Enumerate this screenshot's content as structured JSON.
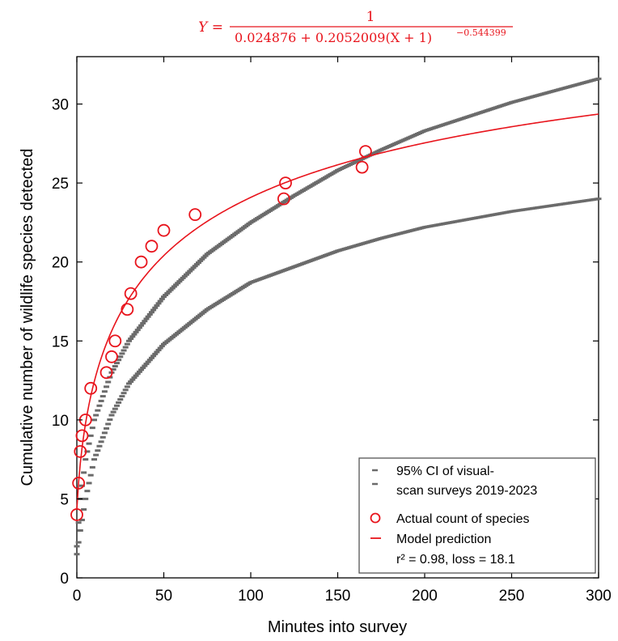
{
  "colors": {
    "model": "#e8141c",
    "ci": "#6b6b6b",
    "axis": "#000000"
  },
  "equation": {
    "lhs": "Y =",
    "numerator": "1",
    "denominator": "0.024876 + 0.2052009(X + 1)",
    "exponent": "−0.544399"
  },
  "chart_data": {
    "type": "scatter",
    "xlabel": "Minutes into survey",
    "ylabel": "Cumulative number of wildlife species detected",
    "xlim": [
      0,
      300
    ],
    "ylim": [
      0,
      33
    ],
    "xticks": [
      0,
      50,
      100,
      150,
      200,
      250,
      300
    ],
    "yticks": [
      0,
      5,
      10,
      15,
      20,
      25,
      30
    ],
    "grid": false,
    "legend_position": "bottom-right",
    "legend": [
      {
        "symbol": "ci-dash",
        "lines": [
          "95% CI of visual-",
          "scan surveys 2019-2023"
        ]
      },
      {
        "symbol": "circle",
        "lines": [
          "Actual count of species"
        ]
      },
      {
        "symbol": "line",
        "lines": [
          "Model prediction",
          "r² = 0.98, loss = 18.1"
        ]
      }
    ],
    "model": {
      "a": 0.024876,
      "b": 0.2052009,
      "c": 0.544399,
      "x_range": [
        0,
        300
      ]
    },
    "actual_counts": {
      "x": [
        0,
        1,
        2,
        3,
        5,
        8,
        17,
        20,
        22,
        29,
        31,
        37,
        43,
        50,
        68,
        119,
        120,
        164,
        166
      ],
      "y": [
        4,
        6,
        8,
        9,
        10,
        12,
        13,
        14,
        15,
        17,
        18,
        20,
        21,
        22,
        23,
        24,
        25,
        26,
        27
      ]
    },
    "ci_upper": {
      "x": [
        0,
        2,
        5,
        10,
        20,
        30,
        50,
        75,
        100,
        125,
        150,
        175,
        200,
        250,
        300
      ],
      "y": [
        2.0,
        5.0,
        7.5,
        10.0,
        13.0,
        15.0,
        17.8,
        20.5,
        22.5,
        24.2,
        25.8,
        27.1,
        28.3,
        30.1,
        31.6
      ]
    },
    "ci_lower": {
      "x": [
        0,
        2,
        5,
        10,
        20,
        30,
        50,
        75,
        100,
        125,
        150,
        175,
        200,
        250,
        300
      ],
      "y": [
        1.5,
        3.0,
        5.0,
        7.5,
        10.3,
        12.3,
        14.8,
        17.0,
        18.7,
        19.7,
        20.7,
        21.5,
        22.2,
        23.2,
        24.0
      ]
    }
  }
}
